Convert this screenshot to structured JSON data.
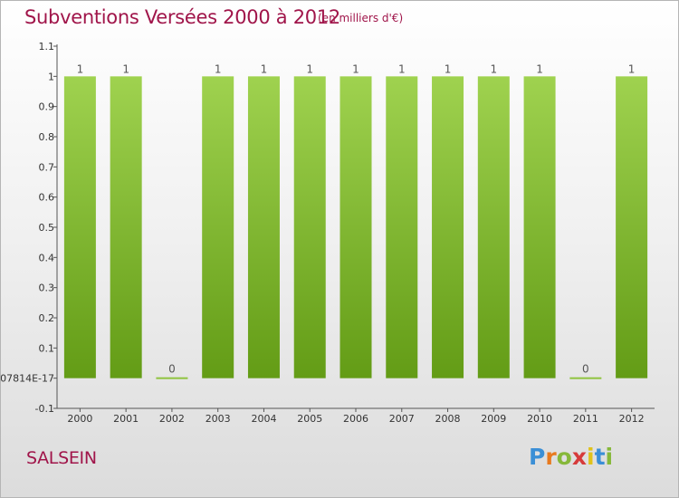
{
  "header": {
    "title": "Subventions Versées 2000 à 2012",
    "unit": "(en milliers d'€)"
  },
  "footer": {
    "commune": "SALSEIN",
    "logo_letters": [
      "P",
      "r",
      "o",
      "x",
      "i",
      "t",
      "i"
    ]
  },
  "colors": {
    "title": "#a0154a",
    "bar_top": "#9fd24f",
    "bar_bottom": "#639c16",
    "zero_bar": "#8fc43f",
    "logo": [
      "#3b8fd6",
      "#e87a1f",
      "#86b83a",
      "#d63a3a",
      "#e0c21a",
      "#3b8fd6",
      "#86b83a"
    ]
  },
  "chart_data": {
    "type": "bar",
    "categories": [
      "2000",
      "2001",
      "2002",
      "2003",
      "2004",
      "2005",
      "2006",
      "2007",
      "2008",
      "2009",
      "2010",
      "2011",
      "2012"
    ],
    "values": [
      1,
      1,
      0,
      1,
      1,
      1,
      1,
      1,
      1,
      1,
      1,
      0,
      1
    ],
    "data_labels": [
      "1",
      "1",
      "0",
      "1",
      "1",
      "1",
      "1",
      "1",
      "1",
      "1",
      "1",
      "0",
      "1"
    ],
    "title": "Subventions Versées 2000 à 2012",
    "xlabel": "",
    "ylabel": "",
    "ylim": [
      -0.1,
      1.1
    ],
    "y_ticks": [
      -0.1,
      0,
      0.1,
      0.2,
      0.3,
      0.4,
      0.5,
      0.6,
      0.7,
      0.8,
      0.9,
      1,
      1.1
    ],
    "y_tick_labels": [
      "-0.1",
      "07814E-17",
      "0.1",
      "0.2",
      "0.3",
      "0.4",
      "0.5",
      "0.6",
      "0.7",
      "0.8",
      "0.9",
      "1",
      "1.1"
    ],
    "grid": false,
    "legend": "none"
  }
}
